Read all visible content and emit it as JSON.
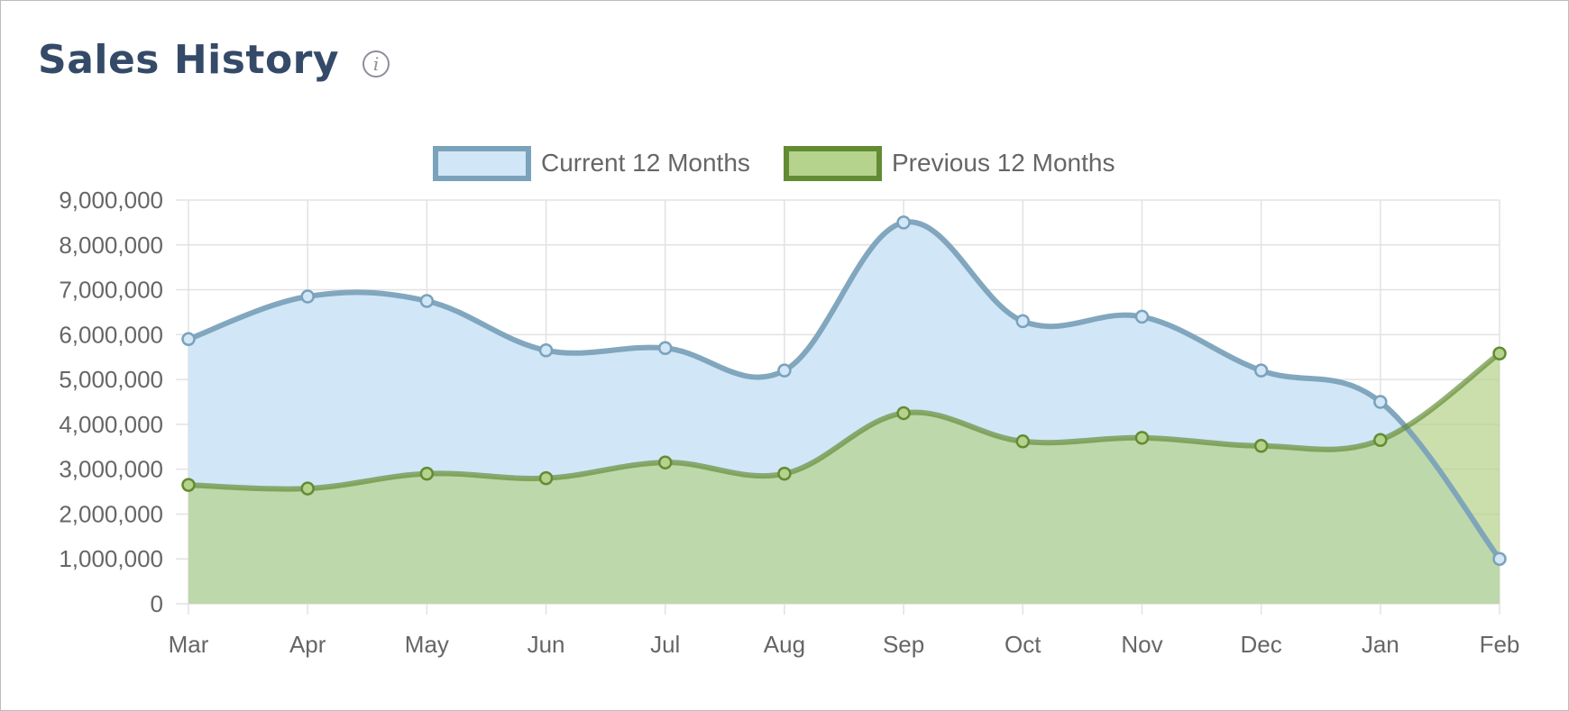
{
  "header": {
    "title": "Sales History",
    "info_icon": "info-icon"
  },
  "colors": {
    "current_line": "#7ba2bb",
    "current_fill": "#d1e6f6",
    "previous_line": "#638b34",
    "previous_fill": "#b5d38c",
    "grid": "#e2e2e2",
    "text": "#666666"
  },
  "chart_data": {
    "type": "area",
    "title": "",
    "xlabel": "",
    "ylabel": "",
    "categories": [
      "Mar",
      "Apr",
      "May",
      "Jun",
      "Jul",
      "Aug",
      "Sep",
      "Oct",
      "Nov",
      "Dec",
      "Jan",
      "Feb"
    ],
    "y_ticks": [
      "9,000,000",
      "8,000,000",
      "7,000,000",
      "6,000,000",
      "5,000,000",
      "4,000,000",
      "3,000,000",
      "2,000,000",
      "1,000,000",
      "0"
    ],
    "ylim": [
      0,
      9000000
    ],
    "grid": true,
    "legend_position": "top-center",
    "series": [
      {
        "name": "Current 12 Months",
        "values": [
          5900000,
          6850000,
          6750000,
          5650000,
          5700000,
          5200000,
          8500000,
          6300000,
          6400000,
          5200000,
          4500000,
          1000000
        ]
      },
      {
        "name": "Previous 12 Months",
        "values": [
          2650000,
          2570000,
          2900000,
          2800000,
          3150000,
          2900000,
          4250000,
          3620000,
          3700000,
          3520000,
          3650000,
          5580000
        ]
      }
    ]
  }
}
